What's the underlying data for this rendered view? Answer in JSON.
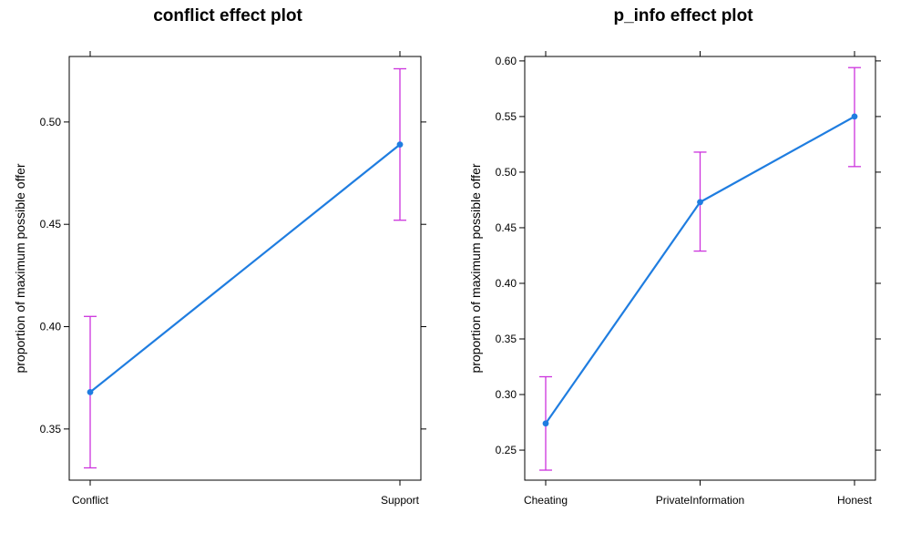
{
  "chart_data": [
    {
      "type": "line",
      "title": "conflict effect plot",
      "xlabel": "",
      "ylabel": "proportion of maximum possible offer",
      "categories": [
        "Conflict",
        "Support"
      ],
      "values": [
        0.368,
        0.489
      ],
      "lower": [
        0.331,
        0.452
      ],
      "upper": [
        0.405,
        0.526
      ],
      "ylim": [
        0.325,
        0.532
      ],
      "yticks": [
        0.35,
        0.4,
        0.45,
        0.5
      ],
      "ytick_labels": [
        "0.35",
        "0.40",
        "0.45",
        "0.50"
      ],
      "colors": {
        "line": "#1f7de0",
        "errorbar": "#cc33dd"
      }
    },
    {
      "type": "line",
      "title": "p_info effect plot",
      "xlabel": "",
      "ylabel": "proportion of maximum possible offer",
      "categories": [
        "Cheating",
        "PrivateInformation",
        "Honest"
      ],
      "values": [
        0.274,
        0.473,
        0.55
      ],
      "lower": [
        0.232,
        0.429,
        0.505
      ],
      "upper": [
        0.316,
        0.518,
        0.594
      ],
      "ylim": [
        0.223,
        0.604
      ],
      "yticks": [
        0.25,
        0.3,
        0.35,
        0.4,
        0.45,
        0.5,
        0.55,
        0.6
      ],
      "ytick_labels": [
        "0.25",
        "0.30",
        "0.35",
        "0.40",
        "0.45",
        "0.50",
        "0.55",
        "0.60"
      ],
      "colors": {
        "line": "#1f7de0",
        "errorbar": "#cc33dd"
      }
    }
  ]
}
